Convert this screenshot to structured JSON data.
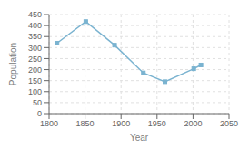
{
  "chart_data": {
    "type": "line",
    "x": [
      1811,
      1851,
      1891,
      1931,
      1961,
      2001,
      2011
    ],
    "values": [
      320,
      418,
      311,
      185,
      145,
      204,
      221
    ],
    "color": "#7ab3d0",
    "marker": "square",
    "xlabel": "Year",
    "ylabel": "Population",
    "xlim": [
      1800,
      2050
    ],
    "ylim": [
      0,
      450
    ],
    "xticks": [
      1800,
      1850,
      1900,
      1950,
      2000,
      2050
    ],
    "yticks": [
      0,
      50,
      100,
      150,
      200,
      250,
      300,
      350,
      400,
      450
    ],
    "grid": true
  }
}
